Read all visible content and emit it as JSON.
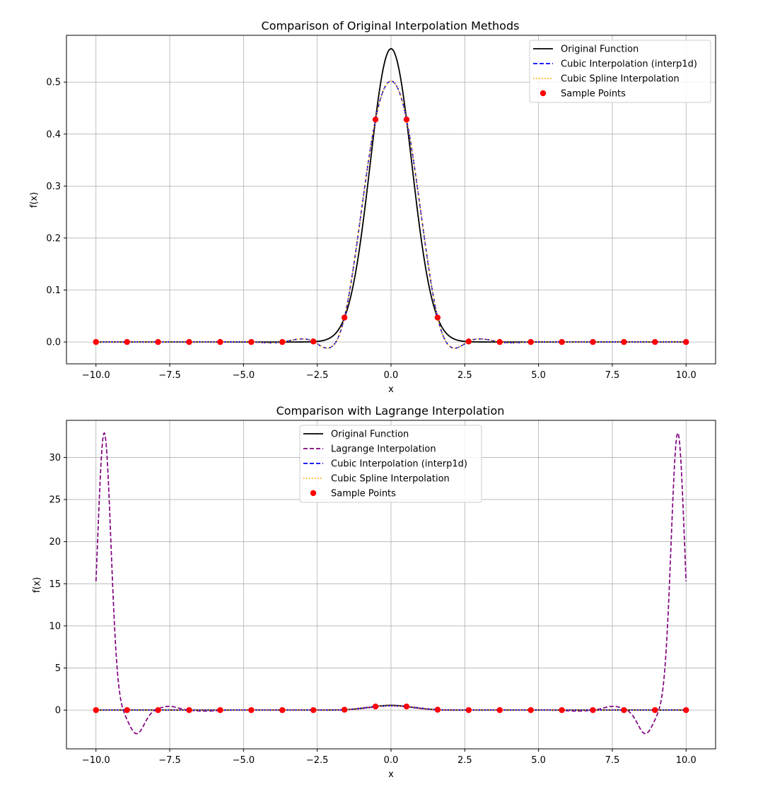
{
  "chart_data": [
    {
      "type": "line",
      "title": "Comparison of Original Interpolation Methods",
      "xlabel": "x",
      "ylabel": "f(x)",
      "xlim": [
        -11,
        11
      ],
      "ylim": [
        -0.042,
        0.59
      ],
      "xticks": [
        -10,
        -7.5,
        -5,
        -2.5,
        0,
        2.5,
        5,
        7.5,
        10
      ],
      "xtick_labels": [
        "−10.0",
        "−7.5",
        "−5.0",
        "−2.5",
        "0.0",
        "2.5",
        "5.0",
        "7.5",
        "10.0"
      ],
      "yticks": [
        0,
        0.1,
        0.2,
        0.3,
        0.4,
        0.5
      ],
      "ytick_labels": [
        "0.0",
        "0.1",
        "0.2",
        "0.3",
        "0.4",
        "0.5"
      ],
      "grid": true,
      "legend_position": "upper right",
      "series": [
        {
          "name": "Original Function",
          "kind": "original",
          "color": "#000000",
          "style": "solid"
        },
        {
          "name": "Cubic Interpolation (interp1d)",
          "kind": "cubic",
          "color": "#0000ff",
          "style": "dashed"
        },
        {
          "name": "Cubic Spline Interpolation",
          "kind": "spline",
          "color": "#ffa500",
          "style": "dotted"
        },
        {
          "name": "Sample Points",
          "kind": "points",
          "color": "#ff0000",
          "style": "marker"
        }
      ]
    },
    {
      "type": "line",
      "title": "Comparison with Lagrange Interpolation",
      "xlabel": "x",
      "ylabel": "f(x)",
      "xlim": [
        -11,
        11
      ],
      "ylim": [
        -4.6,
        34.4
      ],
      "xticks": [
        -10,
        -7.5,
        -5,
        -2.5,
        0,
        2.5,
        5,
        7.5,
        10
      ],
      "xtick_labels": [
        "−10.0",
        "−7.5",
        "−5.0",
        "−2.5",
        "0.0",
        "2.5",
        "5.0",
        "7.5",
        "10.0"
      ],
      "yticks": [
        0,
        5,
        10,
        15,
        20,
        25,
        30
      ],
      "ytick_labels": [
        "0",
        "5",
        "10",
        "15",
        "20",
        "25",
        "30"
      ],
      "grid": true,
      "legend_position": "upper center",
      "series": [
        {
          "name": "Original Function",
          "kind": "original",
          "color": "#000000",
          "style": "solid"
        },
        {
          "name": "Lagrange Interpolation",
          "kind": "lagrange",
          "color": "#800080",
          "style": "dashed"
        },
        {
          "name": "Cubic Interpolation (interp1d)",
          "kind": "cubic",
          "color": "#0000ff",
          "style": "dashed"
        },
        {
          "name": "Cubic Spline Interpolation",
          "kind": "spline",
          "color": "#ffa500",
          "style": "dotted"
        },
        {
          "name": "Sample Points",
          "kind": "points",
          "color": "#ff0000",
          "style": "marker"
        }
      ]
    }
  ],
  "samples": {
    "x": [
      -10,
      -8.947,
      -7.895,
      -6.842,
      -5.789,
      -4.737,
      -3.684,
      -2.632,
      -1.579,
      -0.526,
      0.526,
      1.579,
      2.632,
      3.684,
      4.737,
      5.789,
      6.842,
      7.895,
      8.947,
      10
    ],
    "y": [
      0,
      0,
      0,
      0,
      0,
      0,
      0,
      0.001,
      0.047,
      0.428,
      0.428,
      0.047,
      0.001,
      0,
      0,
      0,
      0,
      0,
      0,
      0
    ]
  }
}
